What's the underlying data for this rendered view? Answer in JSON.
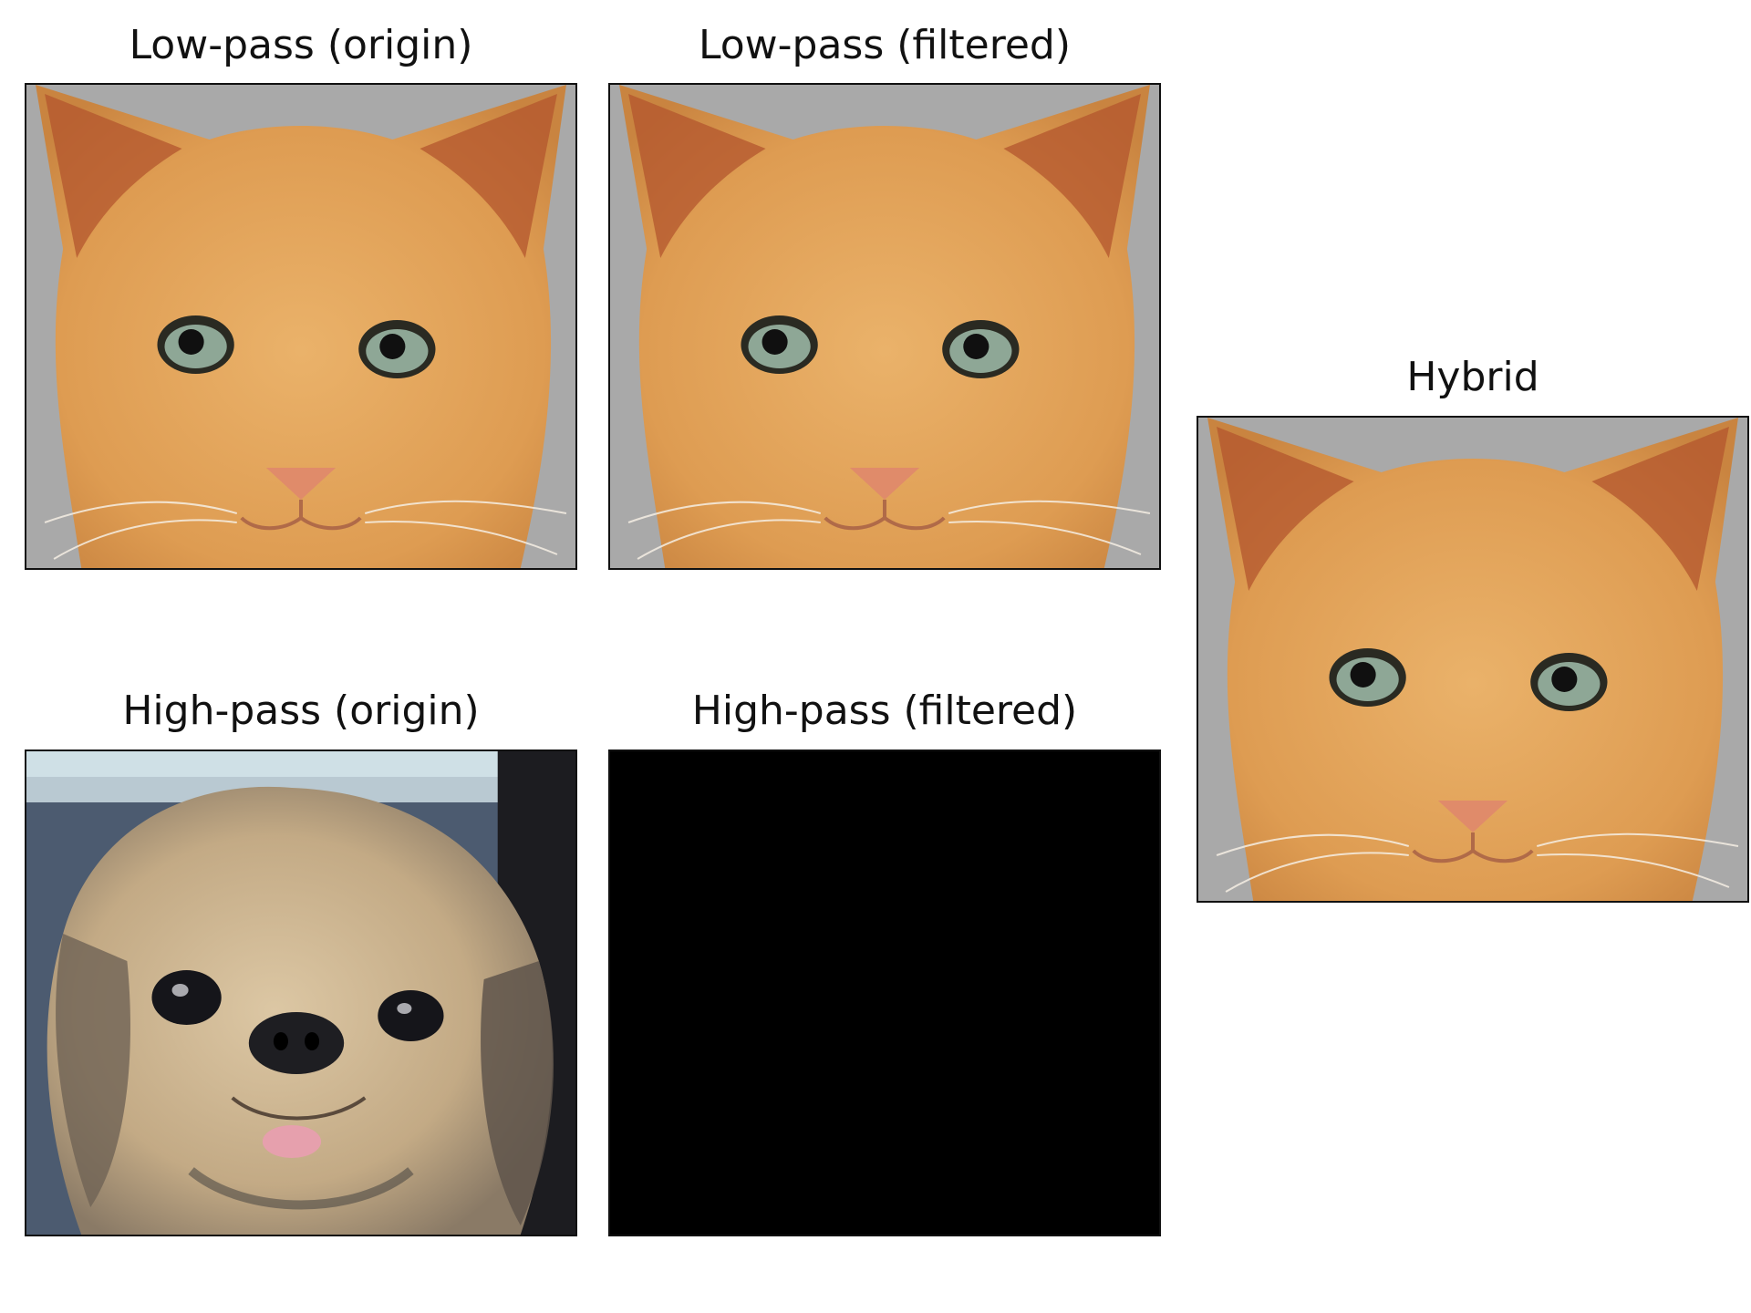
{
  "panels": [
    {
      "title": "Low-pass (origin)",
      "image": "cat-face",
      "colors": {
        "background": "#a9a9a9",
        "fur": "#e3a45a",
        "ear_inner": "#b3562e",
        "eye": "#8ea796",
        "nose": "#e08b6a"
      }
    },
    {
      "title": "Low-pass (filtered)",
      "image": "cat-face",
      "colors": {
        "background": "#a9a9a9",
        "fur": "#e3a45a",
        "ear_inner": "#b3562e",
        "eye": "#8ea796",
        "nose": "#e08b6a"
      }
    },
    {
      "title": "High-pass (origin)",
      "image": "dog-face",
      "colors": {
        "background": "#4c5b70",
        "fur": "#c9b391",
        "nose": "#1e1e22",
        "tongue": "#e6a0ad"
      }
    },
    {
      "title": "High-pass (filtered)",
      "image": "black-frame",
      "colors": {
        "background": "#000000"
      }
    },
    {
      "title": "Hybrid",
      "image": "cat-face",
      "colors": {
        "background": "#a9a9a9",
        "fur": "#e3a45a",
        "ear_inner": "#b3562e",
        "eye": "#8ea796",
        "nose": "#e08b6a"
      }
    }
  ]
}
